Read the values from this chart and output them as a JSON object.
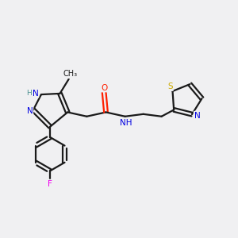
{
  "bg_color": "#f0f0f2",
  "bond_color": "#1a1a1a",
  "atom_colors": {
    "N": "#0000e0",
    "O": "#ff2000",
    "S": "#ccaa00",
    "F": "#ee00ee",
    "H": "#4a9090",
    "C": "#1a1a1a"
  },
  "figsize": [
    3.0,
    3.0
  ],
  "dpi": 100
}
